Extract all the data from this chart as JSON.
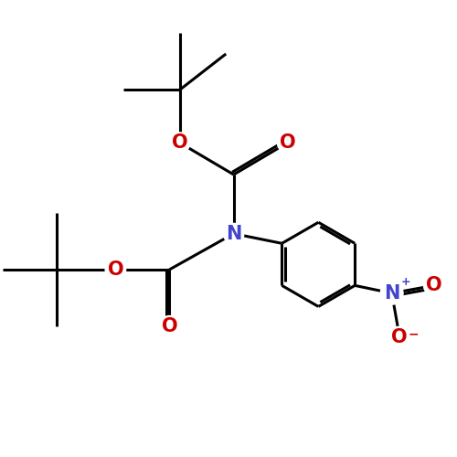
{
  "bg_color": "#ffffff",
  "bond_color": "#000000",
  "N_color": "#4444cc",
  "O_color": "#cc0000",
  "bond_width": 2.2,
  "font_size_atom": 15,
  "xlim": [
    -0.3,
    8.5
  ],
  "ylim": [
    1.0,
    9.5
  ]
}
